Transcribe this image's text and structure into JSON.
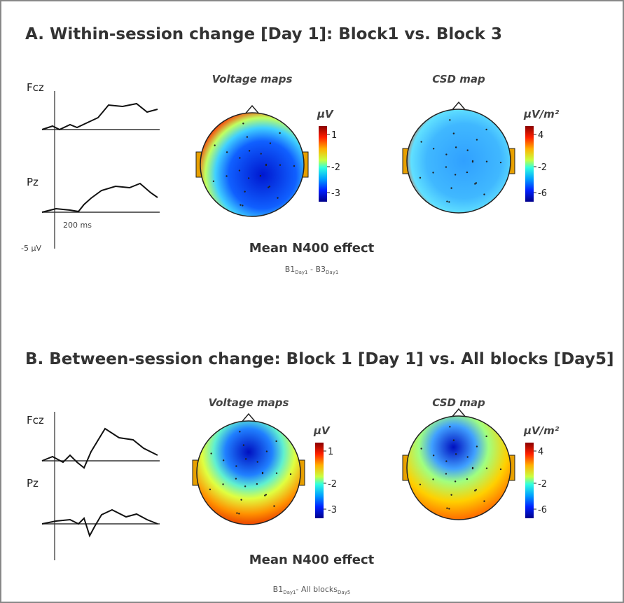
{
  "panels": [
    {
      "title": "A. Within-session change [Day 1]: Block1 vs. Block 3",
      "waveform_labels": [
        "Fcz",
        "Pz"
      ],
      "time_scale": "200 ms",
      "amp_scale": "-5 µV",
      "maps": [
        {
          "title": "Voltage maps",
          "unit": "µV",
          "ticks": [
            "1",
            "-2",
            "-3"
          ]
        },
        {
          "title": "CSD map",
          "unit": "µV/m²",
          "ticks": [
            "4",
            "-2",
            "-6"
          ]
        }
      ],
      "effect": "Mean N400 effect",
      "contrast": [
        {
          "text": "B1",
          "sub": "Day1"
        },
        {
          "text": " - B3",
          "sub": "Day1"
        }
      ]
    },
    {
      "title": "B. Between-session change: Block 1 [Day 1] vs. All blocks [Day5]",
      "waveform_labels": [
        "Fcz",
        "Pz"
      ],
      "maps": [
        {
          "title": "Voltage maps",
          "unit": "µV",
          "ticks": [
            "1",
            "-2",
            "-3"
          ]
        },
        {
          "title": "CSD map",
          "unit": "µV/m²",
          "ticks": [
            "4",
            "-2",
            "-6"
          ]
        }
      ],
      "effect": "Mean N400 effect",
      "contrast": [
        {
          "text": "B1",
          "sub": "Day1"
        },
        {
          "text": "- All blocks",
          "sub": "Day5"
        }
      ]
    }
  ]
}
